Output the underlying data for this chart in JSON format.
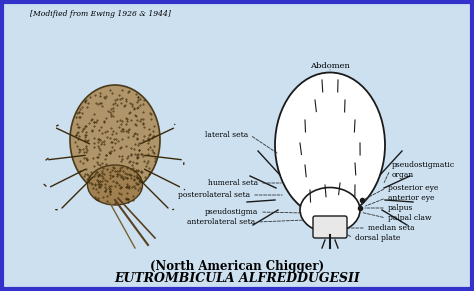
{
  "title_line1": "EUTROMBICULA ALFREDDUGESII",
  "title_line2": "(North American Chigger)",
  "bg_color": "#cce0f0",
  "border_color": "#3333cc",
  "text_color": "#000000",
  "caption": "[Modified from Ewing 1926 & 1944]",
  "labels_left": [
    "anterolateral seta",
    "pseudostigma",
    "posterolateral seta",
    "humeral seta",
    "lateral seta"
  ],
  "labels_right": [
    "dorsal plate",
    "median seta",
    "palpal claw",
    "palpus",
    "anterior eye",
    "posterior eye",
    "pseudostigmatic\norgan"
  ],
  "label_bottom": "Abdomen"
}
